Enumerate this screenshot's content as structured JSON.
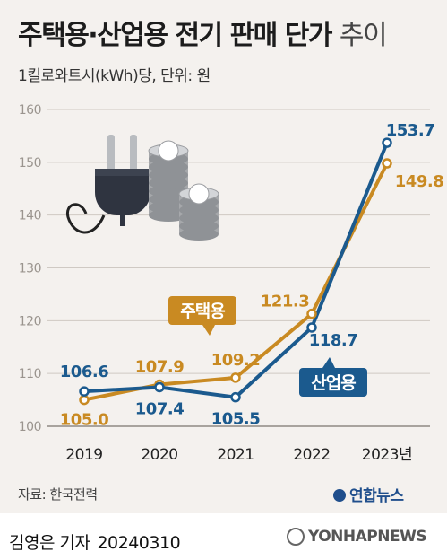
{
  "title": {
    "main": "주택용·산업용 전기 판매 단가",
    "suffix": "추이"
  },
  "unit_label": "1킬로와트시(kWh)당, 단위: 원",
  "chart_data": {
    "type": "line",
    "title": "주택용·산업용 전기 판매 단가 추이",
    "ylabel": "1킬로와트시(kWh)당, 단위: 원",
    "xlabel": "",
    "categories": [
      "2019",
      "2020",
      "2021",
      "2022",
      "2023년"
    ],
    "yticks": [
      100,
      110,
      120,
      130,
      140,
      150,
      160
    ],
    "ylim": [
      100,
      160
    ],
    "grid": true,
    "series": [
      {
        "name": "주택용",
        "color": "#c98a22",
        "values": [
          105.0,
          107.9,
          109.2,
          121.3,
          149.8
        ],
        "labels": [
          "105.0",
          "107.9",
          "109.2",
          "121.3",
          "149.8"
        ]
      },
      {
        "name": "산업용",
        "color": "#1b5a8e",
        "values": [
          106.6,
          107.4,
          105.5,
          118.7,
          153.7
        ],
        "labels": [
          "106.6",
          "107.4",
          "105.5",
          "118.7",
          "153.7"
        ]
      }
    ]
  },
  "source": "자료: 한국전력",
  "logo_text": "연합뉴스",
  "footer": {
    "reporter": "김영은 기자",
    "date": "20240310",
    "agency": "YONHAPNEWS"
  },
  "colors": {
    "background": "#f4f1ee",
    "residential": "#c98a22",
    "industrial": "#1b5a8e"
  },
  "illustration": [
    "plug-icon",
    "coin-stack-icon"
  ]
}
